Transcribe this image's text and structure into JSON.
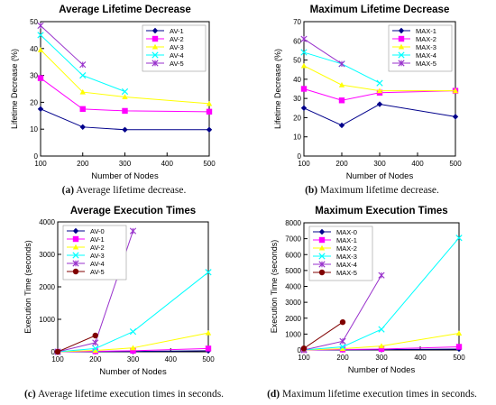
{
  "chart_data": [
    {
      "type": "line",
      "title": "Average Lifetime Decrease",
      "xlabel": "Number of Nodes",
      "ylabel": "Lifetime Decrease (%)",
      "xlim": [
        100,
        500
      ],
      "ylim": [
        0,
        50
      ],
      "xticks": [
        "100",
        "200",
        "300",
        "400",
        "500"
      ],
      "yticks": [
        "0",
        "10",
        "20",
        "30",
        "40",
        "50"
      ],
      "legend_position": "top-right",
      "series": [
        {
          "name": "AV-1",
          "color": "#00008b",
          "marker": "diamond",
          "x": [
            100,
            200,
            300,
            500
          ],
          "y": [
            17.5,
            10.8,
            9.8,
            9.8
          ]
        },
        {
          "name": "AV-2",
          "color": "#ff00ff",
          "marker": "square",
          "x": [
            100,
            200,
            300,
            500
          ],
          "y": [
            29,
            17.5,
            16.8,
            16.5
          ]
        },
        {
          "name": "AV-3",
          "color": "#ffff00",
          "marker": "triangle",
          "x": [
            100,
            200,
            300,
            500
          ],
          "y": [
            39.5,
            23.8,
            22,
            19.5
          ]
        },
        {
          "name": "AV-4",
          "color": "#00ffff",
          "marker": "x",
          "x": [
            100,
            200,
            300
          ],
          "y": [
            45,
            30,
            24
          ]
        },
        {
          "name": "AV-5",
          "color": "#9932cc",
          "marker": "star",
          "x": [
            100,
            200
          ],
          "y": [
            48.5,
            34
          ]
        }
      ]
    },
    {
      "type": "line",
      "title": "Maximum Lifetime Decrease",
      "xlabel": "Number of Nodes",
      "ylabel": "Lifetime Decrease (%)",
      "xlim": [
        100,
        500
      ],
      "ylim": [
        0,
        70
      ],
      "xticks": [
        "100",
        "200",
        "300",
        "400",
        "500"
      ],
      "yticks": [
        "0",
        "10",
        "20",
        "30",
        "40",
        "50",
        "60",
        "70"
      ],
      "legend_position": "top-right",
      "series": [
        {
          "name": "MAX-1",
          "color": "#00008b",
          "marker": "diamond",
          "x": [
            100,
            200,
            300,
            500
          ],
          "y": [
            25,
            16,
            27,
            20.5
          ]
        },
        {
          "name": "MAX-2",
          "color": "#ff00ff",
          "marker": "square",
          "x": [
            100,
            200,
            300,
            500
          ],
          "y": [
            35,
            29,
            33,
            34
          ]
        },
        {
          "name": "MAX-3",
          "color": "#ffff00",
          "marker": "triangle",
          "x": [
            100,
            200,
            300,
            500
          ],
          "y": [
            47,
            37,
            34,
            34
          ]
        },
        {
          "name": "MAX-4",
          "color": "#00ffff",
          "marker": "x",
          "x": [
            100,
            200,
            300
          ],
          "y": [
            54,
            48,
            38
          ]
        },
        {
          "name": "MAX-5",
          "color": "#9932cc",
          "marker": "star",
          "x": [
            100,
            200
          ],
          "y": [
            61,
            48
          ]
        }
      ]
    },
    {
      "type": "line",
      "title": "Average Execution Times",
      "xlabel": "Number of Nodes",
      "ylabel": "Execution Time (seconds)",
      "xlim": [
        100,
        500
      ],
      "ylim": [
        0,
        4000
      ],
      "xticks": [
        "100",
        "200",
        "300",
        "400",
        "500"
      ],
      "yticks": [
        "0",
        "1000",
        "2000",
        "3000",
        "4000"
      ],
      "legend_position": "top-left",
      "series": [
        {
          "name": "AV-0",
          "color": "#00008b",
          "marker": "diamond",
          "x": [
            100,
            200,
            300,
            500
          ],
          "y": [
            0,
            5,
            10,
            30
          ]
        },
        {
          "name": "AV-1",
          "color": "#ff00ff",
          "marker": "square",
          "x": [
            100,
            200,
            300,
            500
          ],
          "y": [
            0,
            15,
            30,
            100
          ]
        },
        {
          "name": "AV-2",
          "color": "#ffff00",
          "marker": "triangle",
          "x": [
            100,
            200,
            300,
            500
          ],
          "y": [
            0,
            40,
            120,
            580
          ]
        },
        {
          "name": "AV-3",
          "color": "#00ffff",
          "marker": "x",
          "x": [
            100,
            200,
            300,
            500
          ],
          "y": [
            0,
            100,
            620,
            2450
          ]
        },
        {
          "name": "AV-4",
          "color": "#9932cc",
          "marker": "star",
          "x": [
            100,
            200,
            300
          ],
          "y": [
            0,
            280,
            3720
          ]
        },
        {
          "name": "AV-5",
          "color": "#800000",
          "marker": "circle",
          "x": [
            100,
            200
          ],
          "y": [
            0,
            500
          ]
        }
      ]
    },
    {
      "type": "line",
      "title": "Maximum Execution Times",
      "xlabel": "Number of Nodes",
      "ylabel": "Execution Time (seconds)",
      "xlim": [
        100,
        500
      ],
      "ylim": [
        0,
        8000
      ],
      "xticks": [
        "100",
        "200",
        "300",
        "400",
        "500"
      ],
      "yticks": [
        "0",
        "1000",
        "2000",
        "3000",
        "4000",
        "5000",
        "6000",
        "7000",
        "8000"
      ],
      "legend_position": "top-left",
      "series": [
        {
          "name": "MAX-0",
          "color": "#00008b",
          "marker": "diamond",
          "x": [
            100,
            200,
            300,
            500
          ],
          "y": [
            0,
            10,
            20,
            60
          ]
        },
        {
          "name": "MAX-1",
          "color": "#ff00ff",
          "marker": "square",
          "x": [
            100,
            200,
            300,
            500
          ],
          "y": [
            0,
            30,
            60,
            200
          ]
        },
        {
          "name": "MAX-2",
          "color": "#ffff00",
          "marker": "triangle",
          "x": [
            100,
            200,
            300,
            500
          ],
          "y": [
            0,
            80,
            250,
            1050
          ]
        },
        {
          "name": "MAX-3",
          "color": "#00ffff",
          "marker": "x",
          "x": [
            100,
            200,
            300,
            500
          ],
          "y": [
            0,
            200,
            1300,
            7050
          ]
        },
        {
          "name": "MAX-4",
          "color": "#9932cc",
          "marker": "star",
          "x": [
            100,
            200,
            300
          ],
          "y": [
            0,
            550,
            4700
          ]
        },
        {
          "name": "MAX-5",
          "color": "#800000",
          "marker": "circle",
          "x": [
            100,
            200
          ],
          "y": [
            100,
            1750
          ]
        }
      ]
    }
  ],
  "captions": [
    {
      "label": "(a)",
      "text": " Average lifetime decrease."
    },
    {
      "label": "(b)",
      "text": " Maximum lifetime decrease."
    },
    {
      "label": "(c)",
      "text": " Average lifetime execution times in seconds."
    },
    {
      "label": "(d)",
      "text": " Maximum lifetime execution times in seconds."
    }
  ]
}
